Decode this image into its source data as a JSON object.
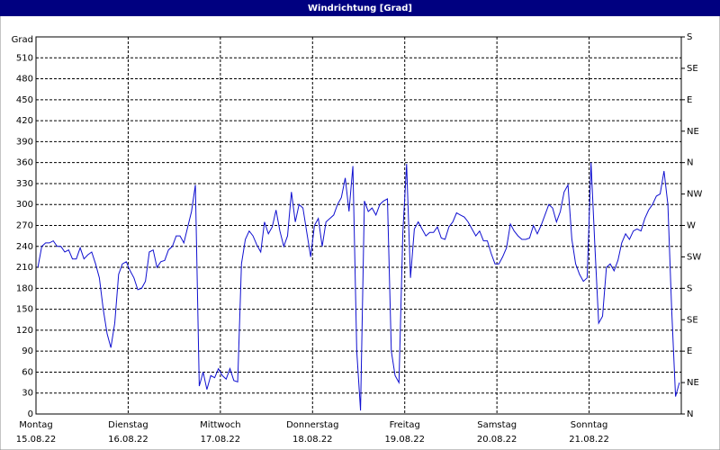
{
  "chart_data": {
    "type": "line",
    "title": "Windrichtung [Grad]",
    "y_label": "Grad",
    "x_labels": [
      {
        "day": "Montag",
        "date": "15.08.22"
      },
      {
        "day": "Dienstag",
        "date": "16.08.22"
      },
      {
        "day": "Mittwoch",
        "date": "17.08.22"
      },
      {
        "day": "Donnerstag",
        "date": "18.08.22"
      },
      {
        "day": "Freitag",
        "date": "19.08.22"
      },
      {
        "day": "Samstag",
        "date": "20.08.22"
      },
      {
        "day": "Sonntag",
        "date": "21.08.22"
      }
    ],
    "ylim": [
      0,
      540
    ],
    "yticks": [
      0,
      30,
      60,
      90,
      120,
      150,
      180,
      210,
      240,
      270,
      300,
      330,
      360,
      390,
      420,
      450,
      480,
      510
    ],
    "y2lim": [
      0,
      540
    ],
    "y2ticks": [
      {
        "value": 0,
        "label": "N"
      },
      {
        "value": 45,
        "label": "NE"
      },
      {
        "value": 90,
        "label": "E"
      },
      {
        "value": 135,
        "label": "SE"
      },
      {
        "value": 180,
        "label": "S"
      },
      {
        "value": 225,
        "label": "SW"
      },
      {
        "value": 270,
        "label": "W"
      },
      {
        "value": 315,
        "label": "NW"
      },
      {
        "value": 360,
        "label": "N"
      },
      {
        "value": 405,
        "label": "NE"
      },
      {
        "value": 450,
        "label": "E"
      },
      {
        "value": 495,
        "label": "SE"
      },
      {
        "value": 540,
        "label": "S"
      }
    ],
    "grid": true,
    "series": [
      {
        "name": "Windrichtung",
        "color": "#1010d0",
        "values": [
          210,
          240,
          245,
          245,
          248,
          240,
          240,
          232,
          235,
          222,
          222,
          238,
          222,
          228,
          232,
          215,
          195,
          150,
          115,
          95,
          130,
          200,
          215,
          218,
          205,
          195,
          178,
          180,
          190,
          232,
          235,
          210,
          218,
          220,
          235,
          240,
          255,
          255,
          245,
          268,
          290,
          328,
          40,
          60,
          35,
          55,
          52,
          65,
          55,
          50,
          65,
          48,
          46,
          215,
          250,
          262,
          255,
          242,
          232,
          275,
          258,
          268,
          292,
          262,
          240,
          255,
          318,
          275,
          300,
          295,
          260,
          225,
          270,
          280,
          240,
          275,
          280,
          285,
          300,
          310,
          338,
          290,
          355,
          90,
          5,
          305,
          290,
          295,
          285,
          300,
          305,
          308,
          90,
          55,
          45,
          260,
          358,
          195,
          265,
          275,
          265,
          255,
          260,
          260,
          268,
          252,
          250,
          268,
          275,
          288,
          285,
          282,
          275,
          265,
          255,
          262,
          248,
          248,
          230,
          215,
          215,
          225,
          238,
          272,
          262,
          255,
          250,
          250,
          252,
          270,
          258,
          270,
          285,
          300,
          295,
          275,
          290,
          318,
          328,
          250,
          215,
          200,
          190,
          195,
          360,
          240,
          130,
          140,
          210,
          215,
          205,
          220,
          245,
          258,
          250,
          262,
          265,
          262,
          280,
          292,
          300,
          312,
          315,
          348,
          300,
          150,
          25,
          45
        ]
      }
    ]
  }
}
